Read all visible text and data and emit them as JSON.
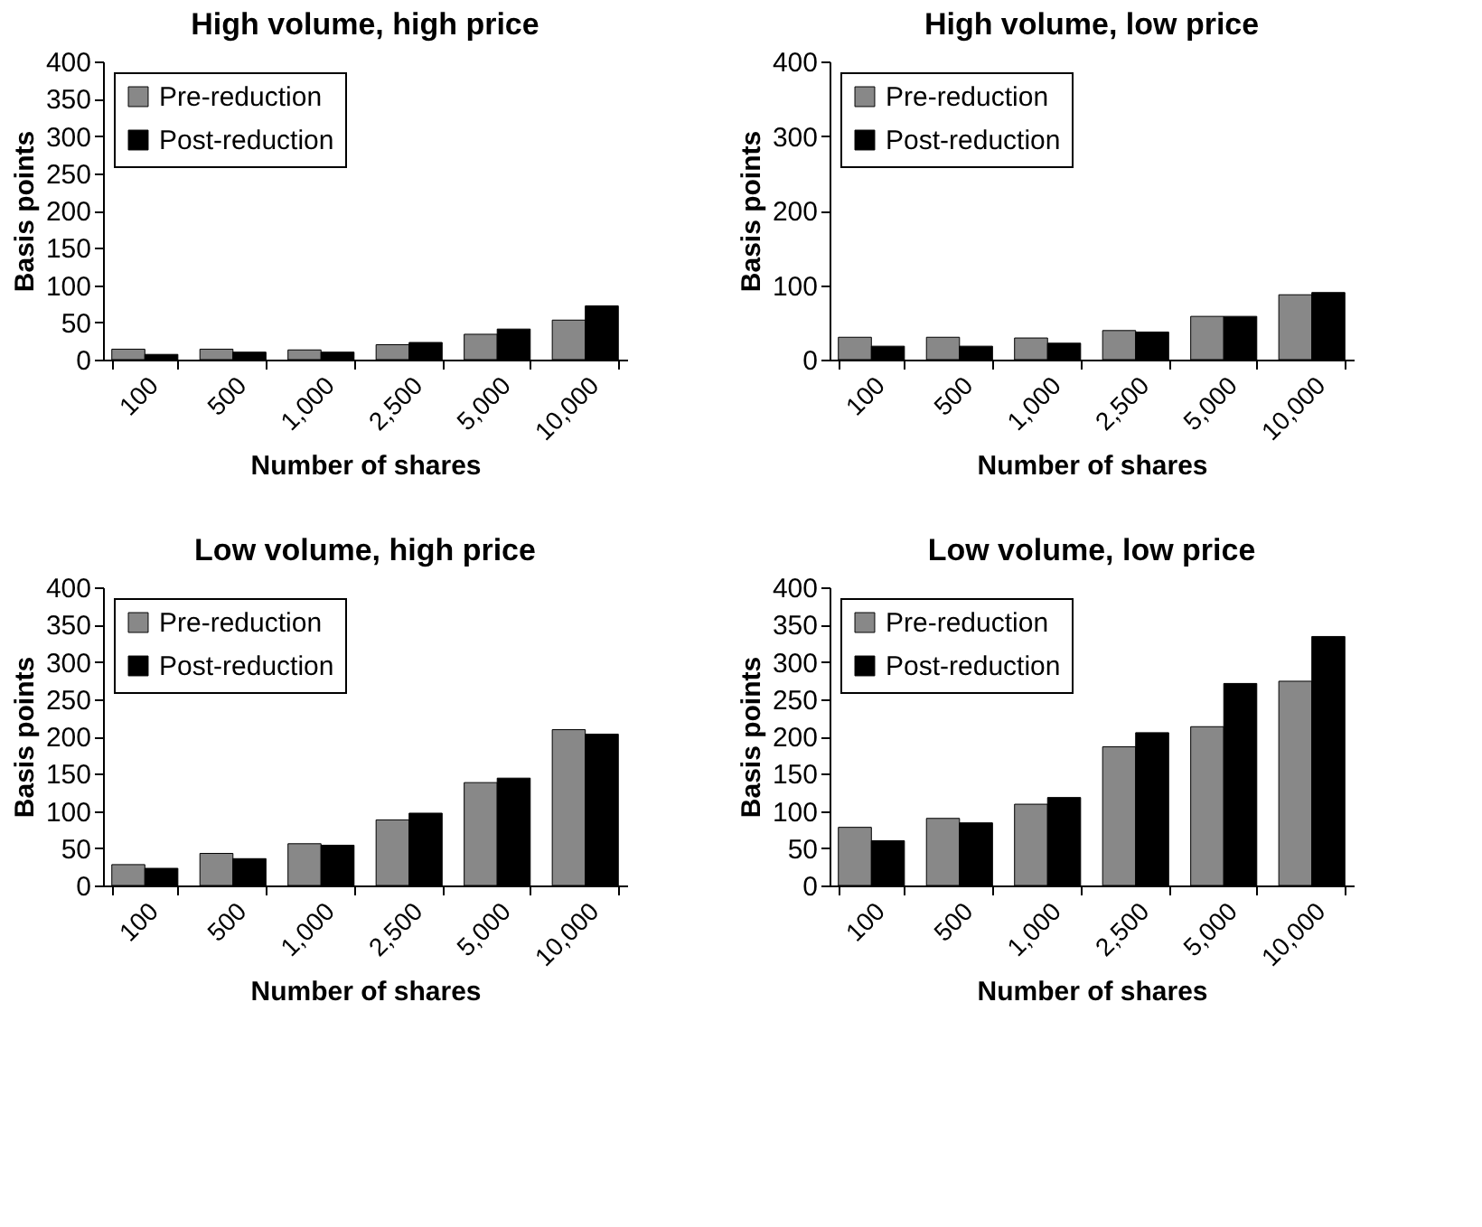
{
  "chart_data": [
    {
      "type": "bar",
      "title": "High volume, high price",
      "xlabel": "Number of shares",
      "ylabel": "Basis points",
      "categories": [
        "100",
        "500",
        "1,000",
        "2,500",
        "5,000",
        "10,000"
      ],
      "ylim": [
        0,
        400
      ],
      "yticks": [
        0,
        50,
        100,
        150,
        200,
        250,
        300,
        350,
        400
      ],
      "legend": "top left",
      "series": [
        {
          "name": "Pre-reduction",
          "color": "#888888",
          "values": [
            14,
            14,
            13,
            20,
            34,
            53
          ]
        },
        {
          "name": "Post-reduction",
          "color": "#000000",
          "values": [
            7,
            10,
            10,
            23,
            41,
            72
          ]
        }
      ]
    },
    {
      "type": "bar",
      "title": "High volume, low price",
      "xlabel": "Number of shares",
      "ylabel": "Basis points",
      "categories": [
        "100",
        "500",
        "1,000",
        "2,500",
        "5,000",
        "10,000"
      ],
      "ylim": [
        0,
        400
      ],
      "yticks": [
        0,
        100,
        200,
        300,
        400
      ],
      "legend": "top left",
      "series": [
        {
          "name": "Pre-reduction",
          "color": "#888888",
          "values": [
            30,
            30,
            29,
            39,
            58,
            87
          ]
        },
        {
          "name": "Post-reduction",
          "color": "#000000",
          "values": [
            18,
            18,
            22,
            37,
            58,
            90
          ]
        }
      ]
    },
    {
      "type": "bar",
      "title": "Low volume, high price",
      "xlabel": "Number of shares",
      "ylabel": "Basis points",
      "categories": [
        "100",
        "500",
        "1,000",
        "2,500",
        "5,000",
        "10,000"
      ],
      "ylim": [
        0,
        400
      ],
      "yticks": [
        0,
        50,
        100,
        150,
        200,
        250,
        300,
        350,
        400
      ],
      "legend": "top left",
      "series": [
        {
          "name": "Pre-reduction",
          "color": "#888888",
          "values": [
            28,
            43,
            56,
            88,
            138,
            209
          ]
        },
        {
          "name": "Post-reduction",
          "color": "#000000",
          "values": [
            23,
            36,
            54,
            97,
            144,
            203
          ]
        }
      ]
    },
    {
      "type": "bar",
      "title": "Low volume, low price",
      "xlabel": "Number of shares",
      "ylabel": "Basis points",
      "categories": [
        "100",
        "500",
        "1,000",
        "2,500",
        "5,000",
        "10,000"
      ],
      "ylim": [
        0,
        400
      ],
      "yticks": [
        0,
        50,
        100,
        150,
        200,
        250,
        300,
        350,
        400
      ],
      "legend": "top left",
      "series": [
        {
          "name": "Pre-reduction",
          "color": "#888888",
          "values": [
            78,
            90,
            109,
            186,
            213,
            274
          ]
        },
        {
          "name": "Post-reduction",
          "color": "#000000",
          "values": [
            60,
            84,
            118,
            205,
            271,
            334
          ]
        }
      ]
    }
  ]
}
